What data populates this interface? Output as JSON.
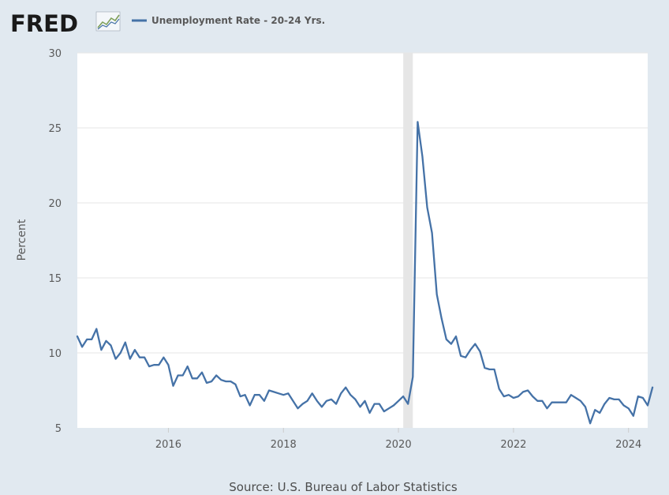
{
  "brand": {
    "logo_text": "FRED",
    "logo_icon": "line-chart-icon"
  },
  "chart_data": {
    "type": "line",
    "title": "",
    "legend": {
      "label": "Unemployment Rate - 20-24 Yrs.",
      "placement": "top-left"
    },
    "ylabel": "Percent",
    "xlabel": "",
    "ylim": [
      5,
      30
    ],
    "yticks": [
      5,
      10,
      15,
      20,
      25,
      30
    ],
    "xlim": [
      "2014-06",
      "2024-05"
    ],
    "xticks": [
      "2016",
      "2018",
      "2020",
      "2022",
      "2024"
    ],
    "grid": "horizontal",
    "line_color": "#4572a7",
    "recession_shading": {
      "start": "2020-02",
      "end": "2020-04",
      "color": "#e6e6e6"
    },
    "source": "Source: U.S. Bureau of Labor Statistics",
    "series": [
      {
        "name": "Unemployment Rate - 20-24 Yrs.",
        "x_start": "2014-06",
        "frequency": "monthly",
        "values": [
          11.1,
          10.4,
          10.9,
          10.9,
          11.6,
          10.2,
          10.8,
          10.5,
          9.6,
          10.0,
          10.7,
          9.6,
          10.2,
          9.7,
          9.7,
          9.1,
          9.2,
          9.2,
          9.7,
          9.2,
          7.8,
          8.5,
          8.5,
          9.1,
          8.3,
          8.3,
          8.7,
          8.0,
          8.1,
          8.5,
          8.2,
          8.1,
          8.1,
          7.9,
          7.1,
          7.2,
          6.5,
          7.2,
          7.2,
          6.8,
          7.5,
          7.4,
          7.3,
          7.2,
          7.3,
          6.8,
          6.3,
          6.6,
          6.8,
          7.3,
          6.8,
          6.4,
          6.8,
          6.9,
          6.6,
          7.3,
          7.7,
          7.2,
          6.9,
          6.4,
          6.8,
          6.0,
          6.6,
          6.6,
          6.1,
          6.3,
          6.5,
          6.8,
          7.1,
          6.6,
          8.4,
          25.4,
          23.1,
          19.7,
          18.0,
          13.9,
          12.3,
          10.9,
          10.6,
          11.1,
          9.8,
          9.7,
          10.2,
          10.6,
          10.1,
          9.0,
          8.9,
          8.9,
          7.6,
          7.1,
          7.2,
          7.0,
          7.1,
          7.4,
          7.5,
          7.1,
          6.8,
          6.8,
          6.3,
          6.7,
          6.7,
          6.7,
          6.7,
          7.2,
          7.0,
          6.8,
          6.4,
          5.3,
          6.2,
          6.0,
          6.6,
          7.0,
          6.9,
          6.9,
          6.5,
          6.3,
          5.8,
          7.1,
          7.0,
          6.5,
          7.7
        ]
      }
    ]
  }
}
